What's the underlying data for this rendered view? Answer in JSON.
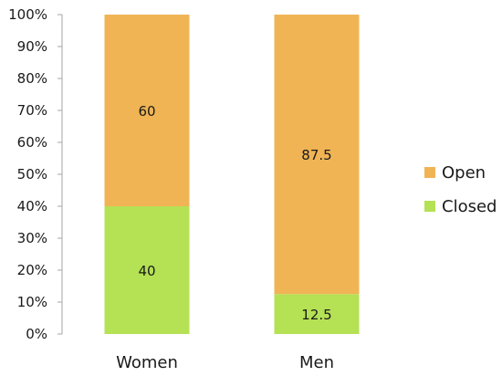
{
  "chart_data": {
    "type": "bar",
    "stacked": true,
    "categories": [
      "Women",
      "Men"
    ],
    "series": [
      {
        "name": "Closed",
        "values": [
          40,
          12.5
        ],
        "color": "#b5e155"
      },
      {
        "name": "Open",
        "values": [
          60,
          87.5
        ],
        "color": "#f0b455"
      }
    ],
    "data_labels": [
      [
        "40",
        "12.5"
      ],
      [
        "60",
        "87.5"
      ]
    ],
    "ylim": [
      0,
      100
    ],
    "yticks": [
      "0%",
      "10%",
      "20%",
      "30%",
      "40%",
      "50%",
      "60%",
      "70%",
      "80%",
      "90%",
      "100%"
    ],
    "legend_order": [
      "Open",
      "Closed"
    ],
    "legend_position": "right",
    "grid": false
  }
}
